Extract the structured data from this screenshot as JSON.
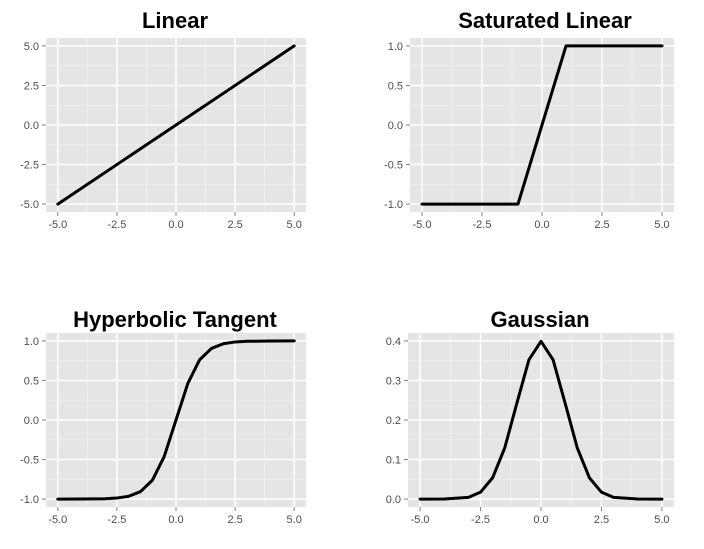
{
  "colors": {
    "panel_bg": "#e5e5e5",
    "grid_major": "#ffffff",
    "grid_minor": "#f0f0f0",
    "line": "#000000",
    "tick_text": "#4d4d4d"
  },
  "chart_data": [
    {
      "type": "line",
      "function": "linear",
      "title": "Linear",
      "xlabel": "",
      "ylabel": "",
      "xlim": [
        -5.5,
        5.5
      ],
      "ylim": [
        -5.5,
        5.5
      ],
      "xticks": [
        -5,
        -2.5,
        0,
        2.5,
        5
      ],
      "xtick_labels": [
        "-5.0",
        "-2.5",
        "0.0",
        "2.5",
        "5.0"
      ],
      "yticks": [
        -5,
        -2.5,
        0,
        2.5,
        5
      ],
      "ytick_labels": [
        "-5.0",
        "-2.5",
        "0.0",
        "2.5",
        "5.0"
      ],
      "grid": true,
      "series": [
        {
          "x": [
            -5,
            5
          ],
          "y": [
            -5,
            5
          ]
        }
      ]
    },
    {
      "type": "line",
      "function": "saturated-linear",
      "title": "Saturated Linear",
      "xlabel": "",
      "ylabel": "",
      "xlim": [
        -5.5,
        5.5
      ],
      "ylim": [
        -1.1,
        1.1
      ],
      "xticks": [
        -5,
        -2.5,
        0,
        2.5,
        5
      ],
      "xtick_labels": [
        "-5.0",
        "-2.5",
        "0.0",
        "2.5",
        "5.0"
      ],
      "yticks": [
        -1,
        -0.5,
        0,
        0.5,
        1
      ],
      "ytick_labels": [
        "-1.0",
        "-0.5",
        "0.0",
        "0.5",
        "1.0"
      ],
      "grid": true,
      "series": [
        {
          "x": [
            -5,
            -1,
            1,
            5
          ],
          "y": [
            -1,
            -1,
            1,
            1
          ]
        }
      ]
    },
    {
      "type": "line",
      "function": "tanh",
      "title": "Hyperbolic Tangent",
      "xlabel": "",
      "ylabel": "",
      "xlim": [
        -5.5,
        5.5
      ],
      "ylim": [
        -1.1,
        1.1
      ],
      "xticks": [
        -5,
        -2.5,
        0,
        2.5,
        5
      ],
      "xtick_labels": [
        "-5.0",
        "-2.5",
        "0.0",
        "2.5",
        "5.0"
      ],
      "yticks": [
        -1,
        -0.5,
        0,
        0.5,
        1
      ],
      "ytick_labels": [
        "-1.0",
        "-0.5",
        "0.0",
        "0.5",
        "1.0"
      ],
      "grid": true,
      "series": [
        {
          "x": [
            -5,
            -4,
            -3,
            -2.5,
            -2,
            -1.5,
            -1,
            -0.5,
            0,
            0.5,
            1,
            1.5,
            2,
            2.5,
            3,
            4,
            5
          ],
          "y": [
            -1.0,
            -0.999,
            -0.995,
            -0.987,
            -0.964,
            -0.905,
            -0.762,
            -0.462,
            0.0,
            0.462,
            0.762,
            0.905,
            0.964,
            0.987,
            0.995,
            0.999,
            1.0
          ]
        }
      ]
    },
    {
      "type": "line",
      "function": "gaussian",
      "title": "Gaussian",
      "xlabel": "",
      "ylabel": "",
      "xlim": [
        -5.5,
        5.5
      ],
      "ylim": [
        -0.02,
        0.42
      ],
      "xticks": [
        -5,
        -2.5,
        0,
        2.5,
        5
      ],
      "xtick_labels": [
        "-5.0",
        "-2.5",
        "0.0",
        "2.5",
        "5.0"
      ],
      "yticks": [
        0,
        0.1,
        0.2,
        0.3,
        0.4
      ],
      "ytick_labels": [
        "0.0",
        "0.1",
        "0.2",
        "0.3",
        "0.4"
      ],
      "grid": true,
      "series": [
        {
          "x": [
            -5,
            -4,
            -3,
            -2.5,
            -2,
            -1.5,
            -1,
            -0.5,
            0,
            0.5,
            1,
            1.5,
            2,
            2.5,
            3,
            4,
            5
          ],
          "y": [
            0.0,
            0.0001,
            0.0044,
            0.0175,
            0.054,
            0.1295,
            0.242,
            0.3521,
            0.3989,
            0.3521,
            0.242,
            0.1295,
            0.054,
            0.0175,
            0.0044,
            0.0001,
            0.0
          ]
        }
      ]
    }
  ]
}
